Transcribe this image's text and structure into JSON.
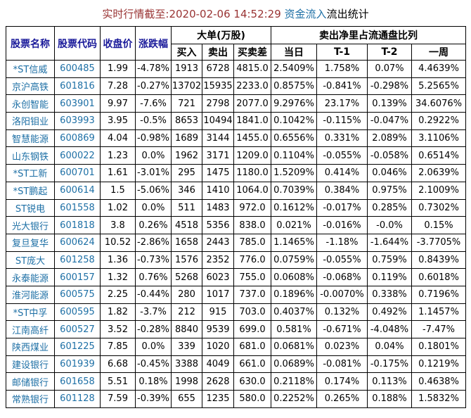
{
  "title": {
    "time_part": "实时行情截至:2020-02-06 14:52:29 ",
    "inflow_part": "资金流入",
    "outflow_part": "流出统计"
  },
  "colors": {
    "title_time_red": "#993333",
    "link_blue": "#1d6fa5",
    "header_navy": "#1a1a9a",
    "border_black": "#000000",
    "background": "#ffffff"
  },
  "table": {
    "headers": {
      "name": "股票名称",
      "code": "股票代码",
      "close": "收盘价",
      "change": "涨跌幅",
      "large_group": "大单(万股)",
      "buy": "买入",
      "sell": "卖出",
      "diff": "买卖差",
      "ratio_group": "卖出净里占流通盘比列",
      "day": "当日",
      "t1": "T-1",
      "t2": "T-2",
      "week": "一周"
    },
    "rows": [
      [
        "*ST信威",
        "600485",
        "1.99",
        "-4.78%",
        "1913",
        "6728",
        "4815.0",
        "2.5409%",
        "1.758%",
        "0.07%",
        "4.4639%"
      ],
      [
        "京沪高铁",
        "601816",
        "7.28",
        "-0.27%",
        "13702",
        "15935",
        "2233.0",
        "0.8575%",
        "-0.841%",
        "-0.298%",
        "5.2565%"
      ],
      [
        "永创智能",
        "603901",
        "9.97",
        "-7.6%",
        "721",
        "2798",
        "2077.0",
        "9.2976%",
        "23.17%",
        "0.139%",
        "34.6076%"
      ],
      [
        "洛阳钼业",
        "603993",
        "3.95",
        "-0.5%",
        "8653",
        "10494",
        "1841.0",
        "0.1042%",
        "-0.115%",
        "-0.047%",
        "0.2922%"
      ],
      [
        "智慧能源",
        "600869",
        "4.04",
        "-0.98%",
        "1689",
        "3144",
        "1455.0",
        "0.6556%",
        "0.331%",
        "2.089%",
        "3.1106%"
      ],
      [
        "山东钢铁",
        "600022",
        "1.23",
        "0.0%",
        "1962",
        "3171",
        "1209.0",
        "0.1104%",
        "-0.055%",
        "-0.058%",
        "0.6514%"
      ],
      [
        "*ST工新",
        "600701",
        "1.61",
        "-3.01%",
        "295",
        "1475",
        "1180.0",
        "1.5209%",
        "0.414%",
        "0.046%",
        "2.0639%"
      ],
      [
        "*ST鹏起",
        "600614",
        "1.5",
        "-5.06%",
        "346",
        "1410",
        "1064.0",
        "0.7039%",
        "0.384%",
        "0.975%",
        "2.1009%"
      ],
      [
        "ST锐电",
        "601558",
        "1.02",
        "0.0%",
        "511",
        "1483",
        "972.0",
        "0.1612%",
        "-0.017%",
        "0.285%",
        "0.7302%"
      ],
      [
        "光大银行",
        "601818",
        "3.8",
        "0.26%",
        "4518",
        "5356",
        "838.0",
        "0.021%",
        "-0.016%",
        "-0.0%",
        "0.15%"
      ],
      [
        "复旦复华",
        "600624",
        "10.52",
        "-2.86%",
        "1658",
        "2443",
        "785.0",
        "1.1465%",
        "-1.18%",
        "-1.644%",
        "-3.7705%"
      ],
      [
        "ST庞大",
        "601258",
        "1.36",
        "-0.73%",
        "1576",
        "2352",
        "776.0",
        "0.0759%",
        "-0.055%",
        "0.759%",
        "0.8439%"
      ],
      [
        "永泰能源",
        "600157",
        "1.32",
        "0.76%",
        "5268",
        "6023",
        "755.0",
        "0.0608%",
        "-0.068%",
        "0.119%",
        "0.6018%"
      ],
      [
        "淮河能源",
        "600575",
        "2.25",
        "-0.44%",
        "280",
        "1017",
        "737.0",
        "0.1896%",
        "-0.0070%",
        "0.338%",
        "0.7196%"
      ],
      [
        "*ST中孚",
        "600595",
        "1.82",
        "-3.7%",
        "212",
        "915",
        "703.0",
        "0.4037%",
        "0.132%",
        "0.492%",
        "1.1457%"
      ],
      [
        "江南高纤",
        "600527",
        "3.52",
        "-0.28%",
        "8840",
        "9539",
        "699.0",
        "0.581%",
        "-0.671%",
        "-4.048%",
        "-7.47%"
      ],
      [
        "陕西煤业",
        "601225",
        "7.85",
        "0.0%",
        "339",
        "1020",
        "681.0",
        "0.0681%",
        "0.023%",
        "0.04%",
        "0.1801%"
      ],
      [
        "建设银行",
        "601939",
        "6.68",
        "-0.45%",
        "3388",
        "4049",
        "661.0",
        "0.0689%",
        "-0.081%",
        "-0.175%",
        "0.1219%"
      ],
      [
        "邮储银行",
        "601658",
        "5.51",
        "0.18%",
        "1998",
        "2628",
        "630.0",
        "0.2118%",
        "0.174%",
        "0.113%",
        "0.4638%"
      ],
      [
        "常熟银行",
        "601128",
        "7.59",
        "-0.39%",
        "655",
        "1235",
        "580.0",
        "0.2252%",
        "0.265%",
        "0.188%",
        "1.5832%"
      ]
    ],
    "column_names": [
      "stock-name",
      "stock-code",
      "close-price",
      "change-pct",
      "buy-volume",
      "sell-volume",
      "buy-sell-diff",
      "ratio-day",
      "ratio-t1",
      "ratio-t2",
      "ratio-week"
    ]
  }
}
